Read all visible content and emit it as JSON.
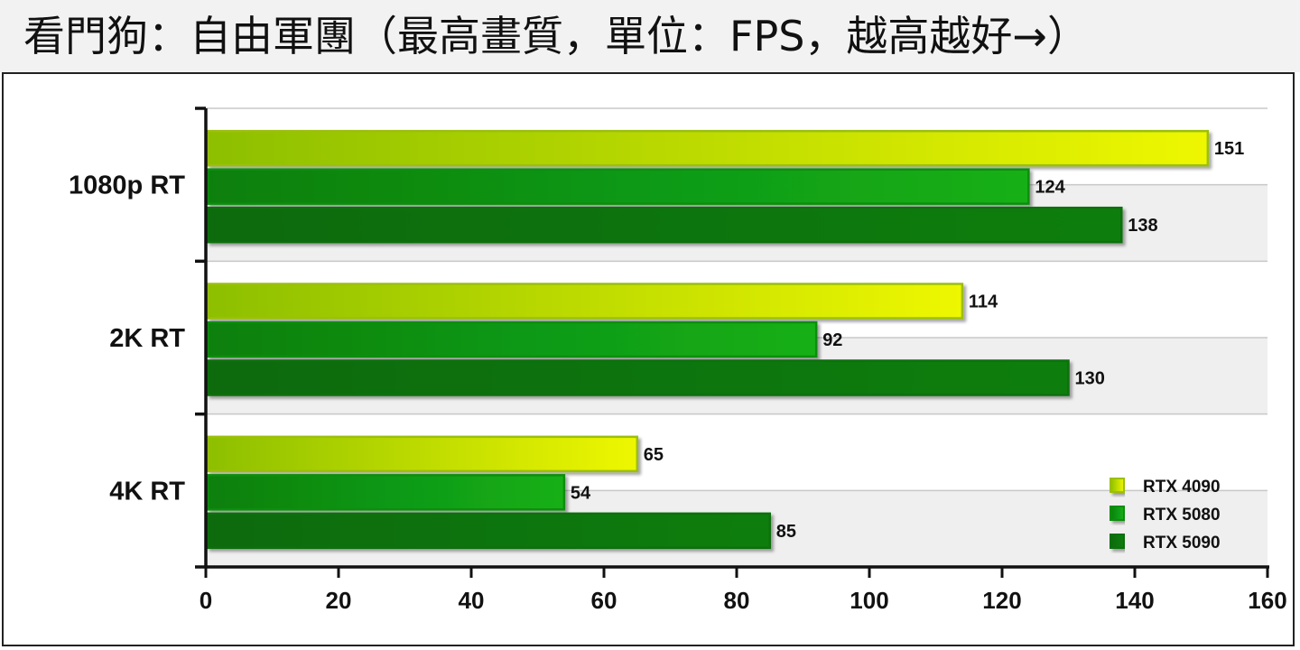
{
  "title": "看門狗：自由軍團（最高畫質，單位：FPS，越高越好→）",
  "chart_data": {
    "type": "bar",
    "orientation": "horizontal",
    "categories": [
      "1080p RT",
      "2K RT",
      "4K RT"
    ],
    "series": [
      {
        "name": "RTX 4090",
        "values": [
          151,
          114,
          65
        ],
        "color_start": "#8dbf00",
        "color_end": "#eef700",
        "border": "#9bbf10"
      },
      {
        "name": "RTX 5080",
        "values": [
          124,
          92,
          54
        ],
        "color_start": "#0b7f10",
        "color_end": "#14b014",
        "border": "#0e8e0e"
      },
      {
        "name": "RTX 5090",
        "values": [
          138,
          130,
          85
        ],
        "color_start": "#0a6a0a",
        "color_end": "#0d7e0d",
        "border": "#0b700b"
      }
    ],
    "xlim": [
      0,
      160
    ],
    "xticks": [
      "0",
      "20",
      "40",
      "60",
      "80",
      "100",
      "120",
      "140",
      "160"
    ],
    "grid": true,
    "legend_position": "bottom-right"
  }
}
